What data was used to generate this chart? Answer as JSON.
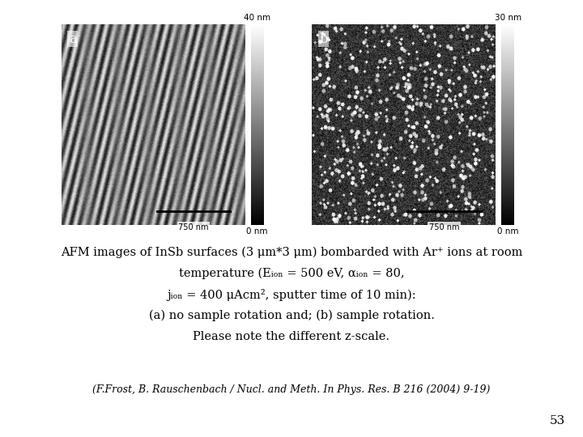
{
  "background_color": "#ffffff",
  "fig_width": 7.2,
  "fig_height": 5.4,
  "label_a": "a",
  "label_b": "b",
  "scalebar_label": "750 nm",
  "colorbar_top_a": "40 nm",
  "colorbar_bot_a": "0 nm",
  "colorbar_top_b": "30 nm",
  "colorbar_bot_b": "0 nm",
  "caption_lines": [
    "AFM images of InSb surfaces (3 μm*3 μm) bombarded with Ar⁺ ions at room",
    "temperature (Eᵢₒₙ = 500 eV, αᵢₒₙ = 80,",
    "jᵢₒₙ = 400 μAcm², sputter time of 10 min):",
    "(a) no sample rotation and; (b) sample rotation.",
    "Please note the different z-scale."
  ],
  "reference": "(F.Frost, B. Rauschenbach / Nucl. and Meth. In Phys. Res. B 216 (2004) 9-19)",
  "page_number": "53",
  "caption_fontsize": 10.5,
  "ref_fontsize": 9,
  "page_fontsize": 11
}
